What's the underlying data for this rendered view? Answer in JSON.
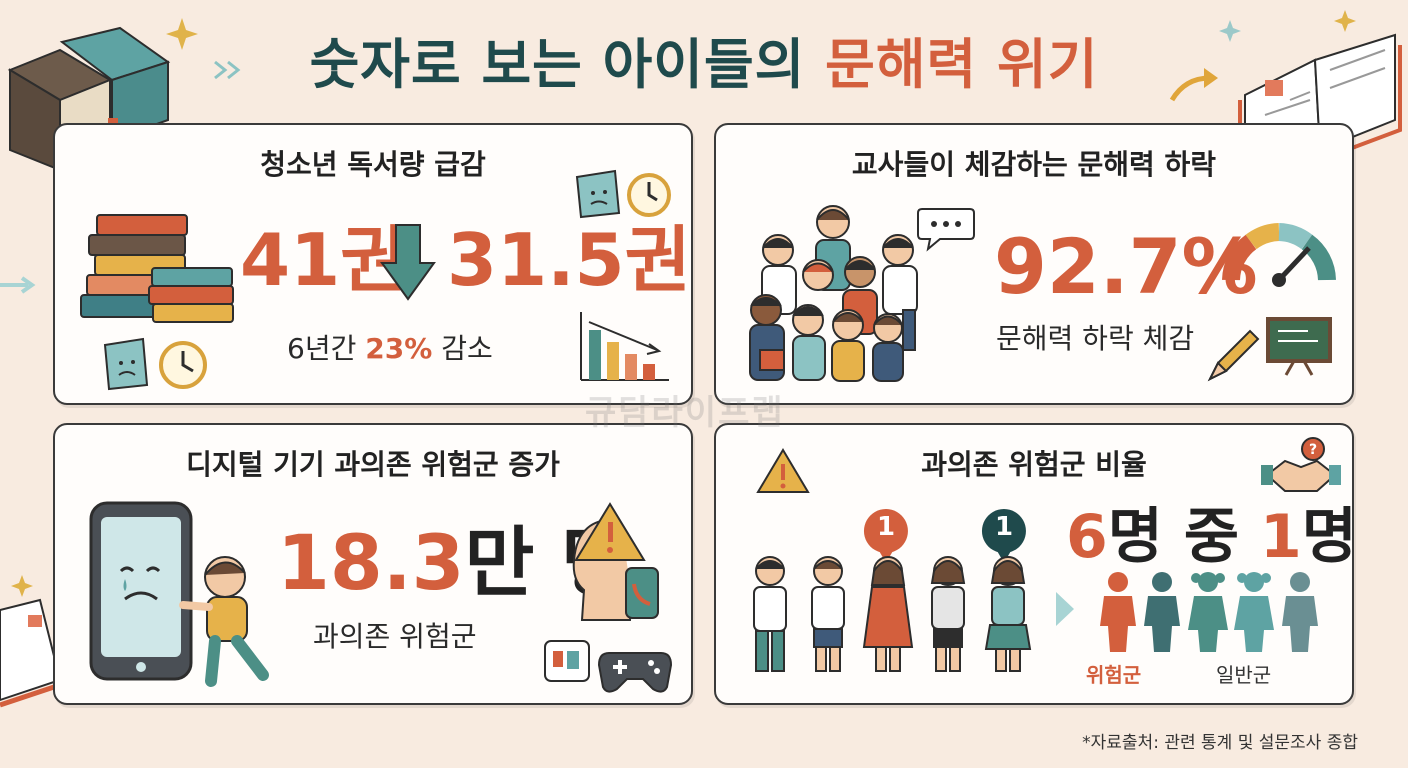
{
  "title": {
    "main": "숫자로 보는 아이들의",
    "accent": "문해력 위기"
  },
  "reading": {
    "title": "청소년 독서량 급감",
    "before": "41권",
    "after": "31.5권",
    "note_prefix": "6년간",
    "note_percent": "23%",
    "note_suffix": "감소"
  },
  "teachers": {
    "title": "교사들이 체감하는 문해력 하락",
    "percent": "92.7%",
    "caption": "문해력 하락 체감"
  },
  "digital": {
    "title": "디지털 기기 과의존 위험군 증가",
    "number": "18.3",
    "unit": "만 명",
    "caption": "과의존 위험군"
  },
  "ratio": {
    "title": "과의존 위험군 비율",
    "badge_1": "1",
    "badge_2": "1",
    "text_six": "6",
    "text_mid": "명 중",
    "text_one": "1",
    "text_end": "명",
    "legend_risk": "위험군",
    "legend_normal": "일반군"
  },
  "source": "*자료출처: 관련 통계 및 설문조사 종합",
  "watermark": "규담라이프랩",
  "colors": {
    "accent": "#d35f3d",
    "teal": "#1f4a4c",
    "card_border": "#3a3a3a",
    "background": "#f8ebe0"
  }
}
